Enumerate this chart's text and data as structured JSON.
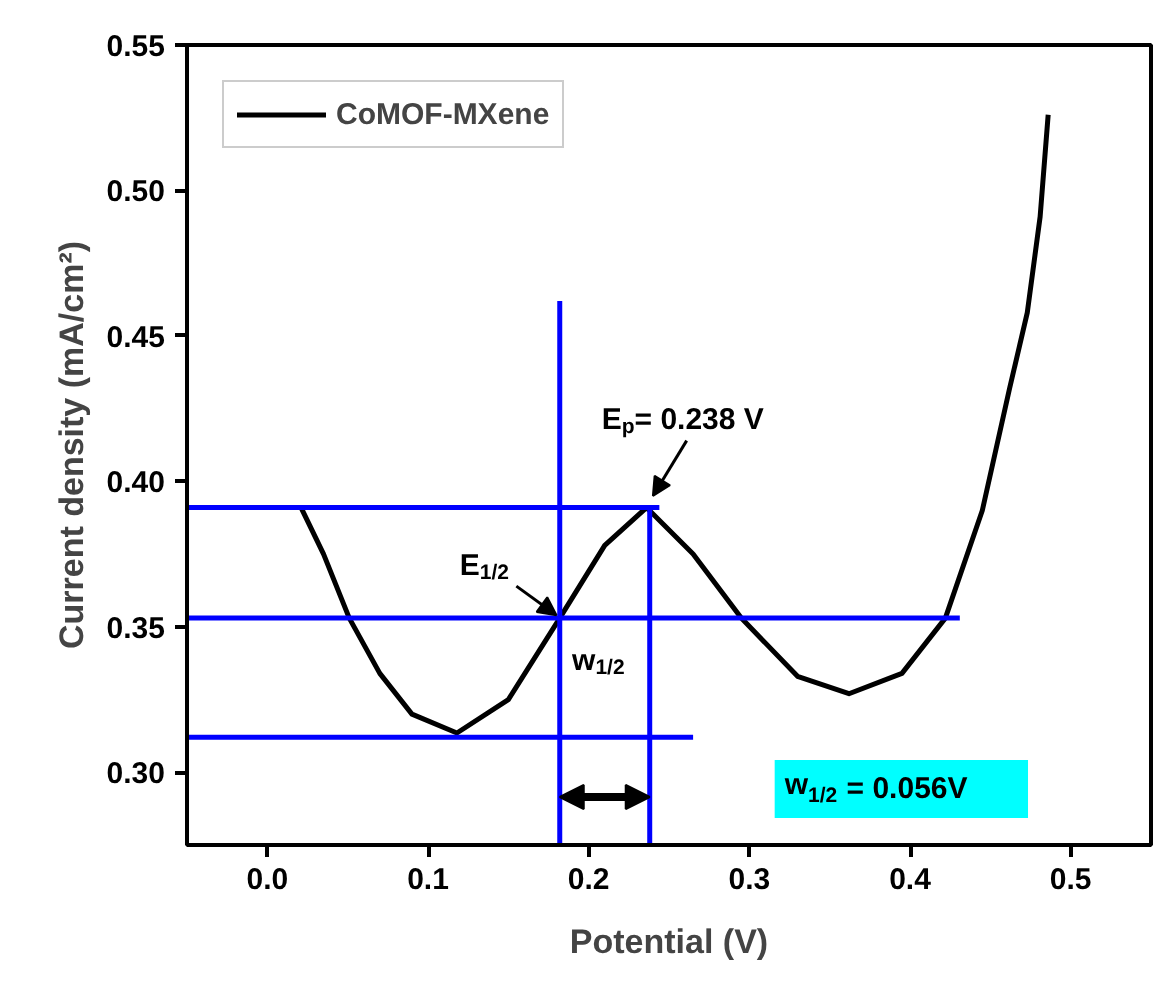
{
  "chart_data": {
    "type": "line",
    "xlabel": "Potential (V)",
    "ylabel": "Current density (mA/cm²)",
    "xlim": [
      -0.05,
      0.55
    ],
    "ylim": [
      0.275,
      0.55
    ],
    "xticks": [
      {
        "value": 0,
        "label": "0.0"
      },
      0.1,
      0.2,
      0.3,
      0.4,
      0.5
    ],
    "yticks": [
      {
        "value": 0.3,
        "label": "0.30"
      },
      0.35,
      {
        "value": 0.4,
        "label": "0.40"
      },
      0.45,
      {
        "value": 0.5,
        "label": "0.50"
      },
      0.55
    ],
    "grid": false,
    "legend": "top left",
    "marker": "none",
    "line_style": "solid",
    "series": [
      {
        "name": "CoMOF-MXene",
        "color": "#000000",
        "x": [
          0.021,
          0.035,
          0.051,
          0.07,
          0.09,
          0.118,
          0.15,
          0.182,
          0.21,
          0.236,
          0.265,
          0.295,
          0.33,
          0.362,
          0.395,
          0.422,
          0.445,
          0.462,
          0.473,
          0.481,
          0.486
        ],
        "values": [
          0.391,
          0.375,
          0.353,
          0.334,
          0.32,
          0.3135,
          0.325,
          0.353,
          0.378,
          0.391,
          0.375,
          0.353,
          0.333,
          0.327,
          0.334,
          0.353,
          0.39,
          0.432,
          0.458,
          0.491,
          0.526
        ]
      },
      {
        "color": "#0000ff",
        "x": [
          -0.05,
          0.244
        ],
        "values": [
          0.391,
          0.391
        ]
      },
      {
        "color": "#0000ff",
        "x": [
          -0.05,
          0.431
        ],
        "values": [
          0.353,
          0.353
        ]
      },
      {
        "color": "#0000ff",
        "x": [
          -0.05,
          0.265
        ],
        "values": [
          0.312,
          0.312
        ]
      },
      {
        "color": "#0000ff",
        "x": [
          0.182,
          0.182
        ],
        "values": [
          0.275,
          0.462
        ]
      },
      {
        "color": "#0000ff",
        "x": [
          0.238,
          0.238
        ],
        "values": [
          0.275,
          0.391
        ]
      }
    ],
    "annotations": [
      {
        "text": "E$_{p}$= 0.238 V",
        "x": 0.238,
        "y": 0.391
      },
      {
        "text": "E$_{1/2}$",
        "x": 0.182,
        "y": 0.353
      },
      "w$_{1/2}$",
      "w$_{1/2}$ = 0.056V"
    ]
  }
}
